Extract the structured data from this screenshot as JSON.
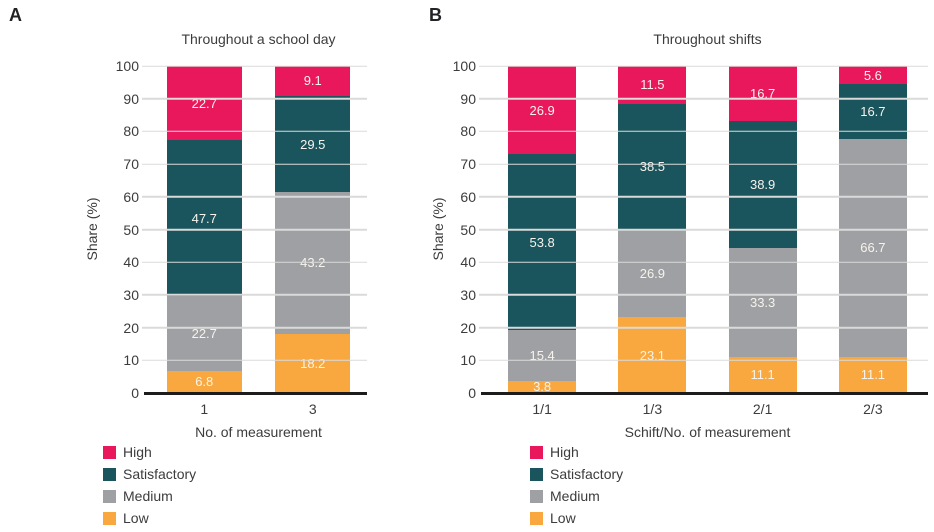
{
  "colors": {
    "high": "#E9185C",
    "satisfactory": "#1A545C",
    "medium": "#9EA0A3",
    "low": "#F8A83E",
    "grid": "#DADADA",
    "axis": "#1C1C1C",
    "text": "#3C3C3E",
    "bar_label": "#F7F3ED"
  },
  "legend": {
    "items": [
      {
        "label": "High",
        "color_key": "high"
      },
      {
        "label": "Satisfactory",
        "color_key": "satisfactory"
      },
      {
        "label": "Medium",
        "color_key": "medium"
      },
      {
        "label": "Low",
        "color_key": "low"
      }
    ]
  },
  "chart_data": [
    {
      "panel": "A",
      "type": "bar",
      "stacked": true,
      "title": "Throughout a school day",
      "xlabel": "No. of measurement",
      "ylabel": "Share (%)",
      "ylim": [
        0,
        100
      ],
      "ytick_step": 10,
      "grid": true,
      "legend_position": "bottom-left",
      "categories": [
        "1",
        "3"
      ],
      "series": [
        {
          "name": "Low",
          "color_key": "low",
          "values": [
            6.8,
            18.2
          ]
        },
        {
          "name": "Medium",
          "color_key": "medium",
          "values": [
            22.7,
            43.2
          ]
        },
        {
          "name": "Satisfactory",
          "color_key": "satisfactory",
          "values": [
            47.7,
            29.5
          ]
        },
        {
          "name": "High",
          "color_key": "high",
          "values": [
            22.7,
            9.1
          ]
        }
      ]
    },
    {
      "panel": "B",
      "type": "bar",
      "stacked": true,
      "title": "Throughout shifts",
      "xlabel": "Schift/No. of measurement",
      "ylabel": "Share (%)",
      "ylim": [
        0,
        100
      ],
      "ytick_step": 10,
      "grid": true,
      "legend_position": "bottom-left",
      "categories": [
        "1/1",
        "1/3",
        "2/1",
        "2/3"
      ],
      "series": [
        {
          "name": "Low",
          "color_key": "low",
          "values": [
            3.8,
            23.1,
            11.1,
            11.1
          ]
        },
        {
          "name": "Medium",
          "color_key": "medium",
          "values": [
            15.4,
            26.9,
            33.3,
            66.7
          ]
        },
        {
          "name": "Satisfactory",
          "color_key": "satisfactory",
          "values": [
            53.8,
            38.5,
            38.9,
            16.7
          ]
        },
        {
          "name": "High",
          "color_key": "high",
          "values": [
            26.9,
            11.5,
            16.7,
            5.6
          ]
        }
      ]
    }
  ]
}
